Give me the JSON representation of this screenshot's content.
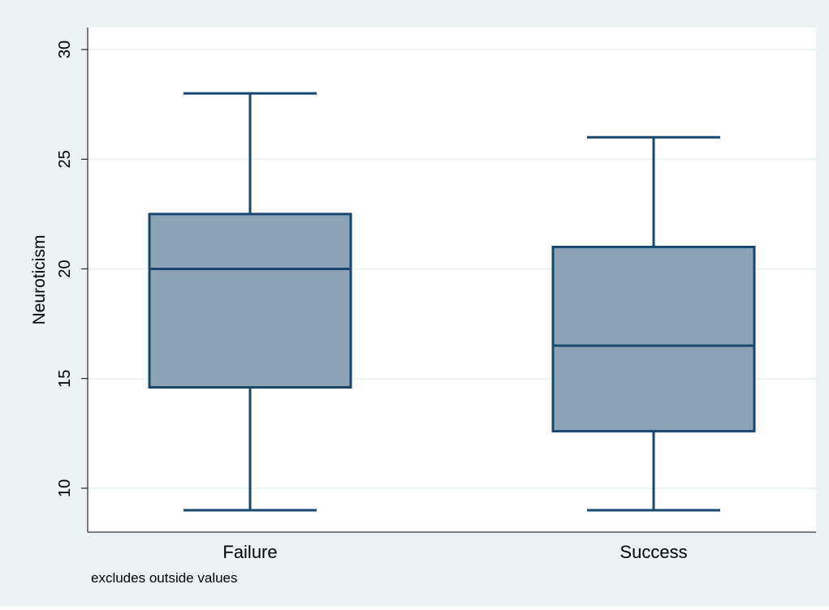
{
  "chart_data": {
    "type": "box",
    "title": "",
    "xlabel": "",
    "ylabel": "Neuroticism",
    "ylim": [
      8,
      31
    ],
    "yticks": [
      10,
      15,
      20,
      25,
      30
    ],
    "grid": true,
    "note": "excludes outside values",
    "categories": [
      "Failure",
      "Success"
    ],
    "boxes": [
      {
        "category": "Failure",
        "whisker_low": 9,
        "q1": 14.6,
        "median": 20,
        "q3": 22.5,
        "whisker_high": 28
      },
      {
        "category": "Success",
        "whisker_low": 9,
        "q1": 12.6,
        "median": 16.5,
        "q3": 21,
        "whisker_high": 26
      }
    ],
    "colors": {
      "outer_background": "#eaf2f3",
      "plot_background": "#ffffff",
      "box_fill": "#8ba3b5",
      "box_stroke": "#1a476f",
      "grid": "#eaf2f3",
      "axis": "#000000"
    }
  }
}
